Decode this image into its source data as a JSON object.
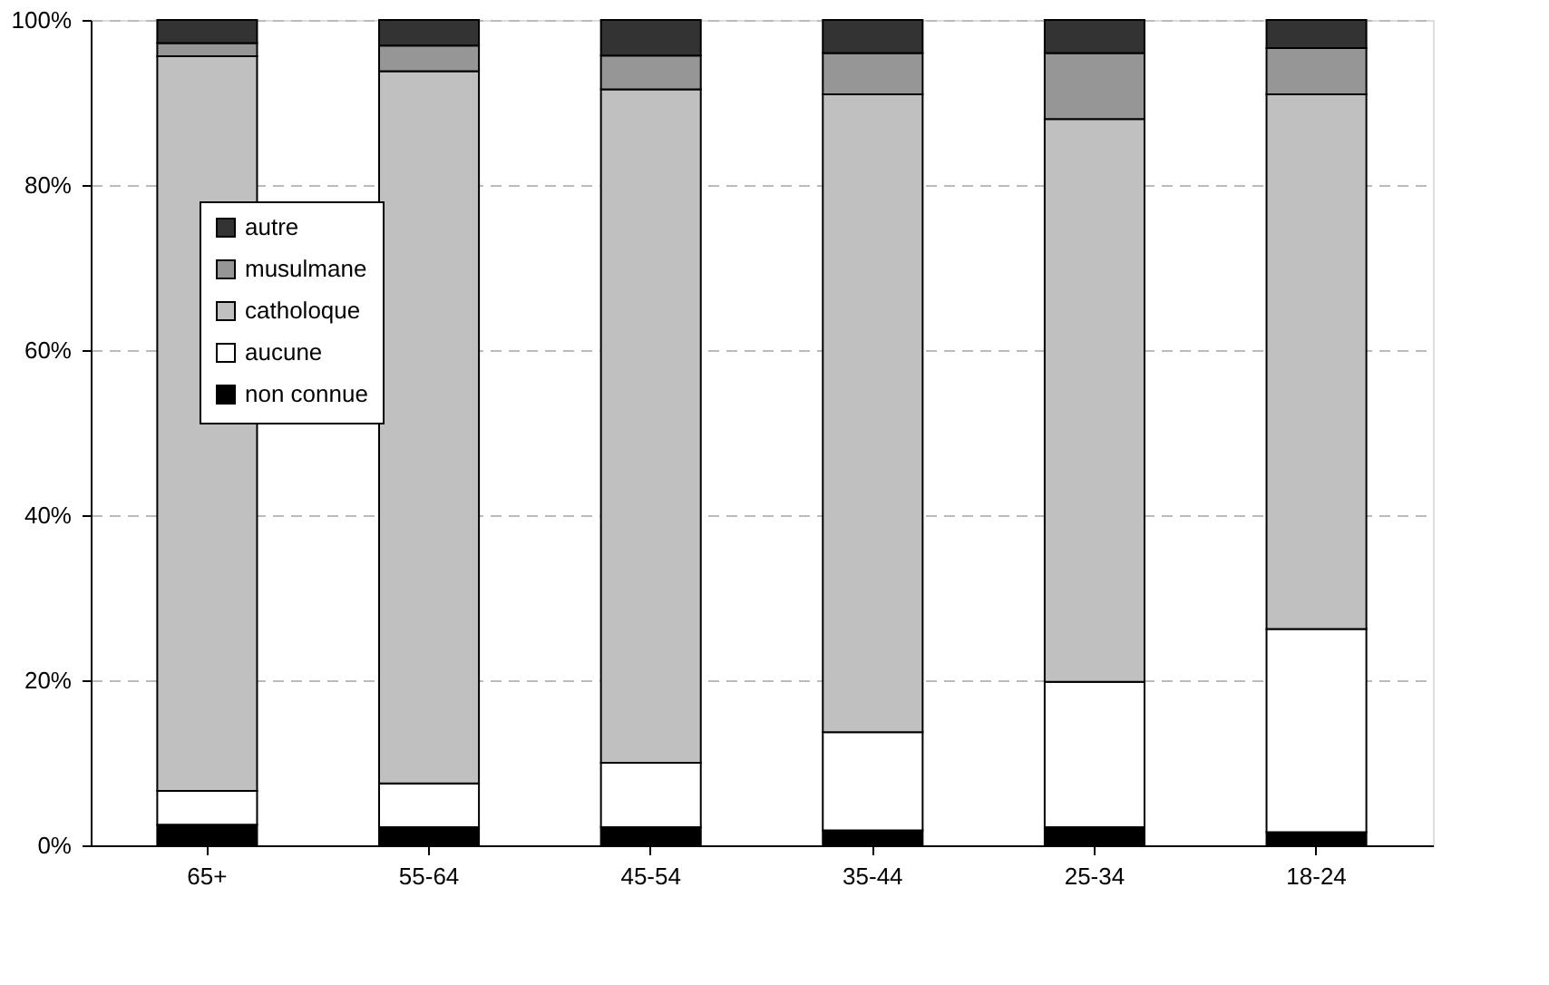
{
  "chart_data": {
    "type": "bar",
    "stacked": true,
    "categories": [
      "65+",
      "55-64",
      "45-54",
      "35-44",
      "25-34",
      "18-24"
    ],
    "series": [
      {
        "name": "non connue",
        "color": "#000000",
        "values": [
          2.5,
          2.2,
          2.2,
          1.8,
          2.2,
          1.6
        ]
      },
      {
        "name": "aucune",
        "color": "#ffffff",
        "values": [
          4.1,
          5.3,
          7.8,
          11.9,
          17.6,
          24.6
        ]
      },
      {
        "name": "catholoque",
        "color": "#c0c0c0",
        "values": [
          89,
          86.3,
          81.6,
          77.3,
          68.2,
          64.8
        ]
      },
      {
        "name": "musulmane",
        "color": "#969696",
        "values": [
          1.6,
          3.1,
          4.1,
          5,
          8,
          5.6
        ]
      },
      {
        "name": "autre",
        "color": "#333333",
        "values": [
          2.8,
          3.1,
          4.3,
          4,
          4,
          3.4
        ]
      }
    ],
    "ylim": [
      0,
      100
    ],
    "yticks": [
      {
        "value": 0,
        "label": "0%"
      },
      {
        "value": 20,
        "label": "20%"
      },
      {
        "value": 40,
        "label": "40%"
      },
      {
        "value": 60,
        "label": "60%"
      },
      {
        "value": 80,
        "label": "80%"
      },
      {
        "value": 100,
        "label": "100%"
      }
    ],
    "grid": "y",
    "legend": "top left"
  }
}
